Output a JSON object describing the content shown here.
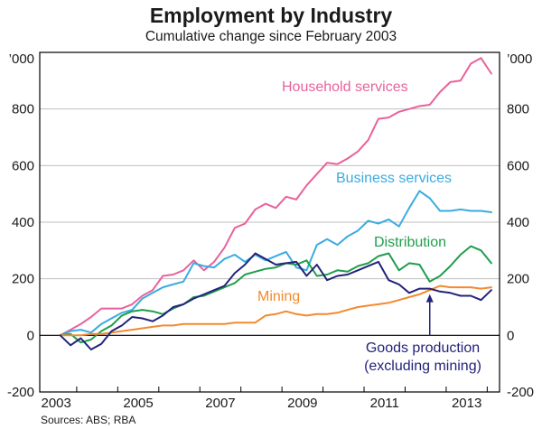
{
  "title": "Employment by Industry",
  "subtitle": "Cumulative change since February 2003",
  "source": "Sources: ABS; RBA",
  "chart_data": {
    "type": "line",
    "title": "Employment by Industry",
    "subtitle": "Cumulative change since February 2003",
    "xlabel": "",
    "ylabel": "",
    "y_unit_label": "’000",
    "x_ticks": [
      "2003",
      "2005",
      "2007",
      "2009",
      "2011",
      "2013"
    ],
    "y_ticks": [
      -200,
      0,
      200,
      400,
      600,
      800
    ],
    "xlim": [
      2002.6,
      2013.8
    ],
    "ylim": [
      -200,
      1000
    ],
    "grid": true,
    "legend": "inline labels",
    "series": [
      {
        "name": "Household services",
        "label": "Household services",
        "color": "#e8629c",
        "x": [
          2003.1,
          2003.35,
          2003.6,
          2003.85,
          2004.1,
          2004.35,
          2004.6,
          2004.85,
          2005.1,
          2005.35,
          2005.6,
          2005.85,
          2006.1,
          2006.35,
          2006.6,
          2006.85,
          2007.1,
          2007.35,
          2007.6,
          2007.85,
          2008.1,
          2008.35,
          2008.6,
          2008.85,
          2009.1,
          2009.35,
          2009.6,
          2009.85,
          2010.1,
          2010.35,
          2010.6,
          2010.85,
          2011.1,
          2011.35,
          2011.6,
          2011.85,
          2012.1,
          2012.35,
          2012.6,
          2012.85,
          2013.1,
          2013.35,
          2013.6
        ],
        "values": [
          0,
          20,
          40,
          65,
          95,
          95,
          95,
          110,
          140,
          160,
          210,
          215,
          230,
          265,
          230,
          260,
          310,
          380,
          395,
          445,
          465,
          450,
          490,
          480,
          530,
          570,
          610,
          605,
          625,
          650,
          690,
          765,
          770,
          790,
          800,
          810,
          815,
          860,
          895,
          900,
          960,
          980,
          925
        ]
      },
      {
        "name": "Business services",
        "label": "Business services",
        "color": "#3aabe0",
        "x": [
          2003.1,
          2003.35,
          2003.6,
          2003.85,
          2004.1,
          2004.35,
          2004.6,
          2004.85,
          2005.1,
          2005.35,
          2005.6,
          2005.85,
          2006.1,
          2006.35,
          2006.6,
          2006.85,
          2007.1,
          2007.35,
          2007.6,
          2007.85,
          2008.1,
          2008.35,
          2008.6,
          2008.85,
          2009.1,
          2009.35,
          2009.6,
          2009.85,
          2010.1,
          2010.35,
          2010.6,
          2010.85,
          2011.1,
          2011.35,
          2011.6,
          2011.85,
          2012.1,
          2012.35,
          2012.6,
          2012.85,
          2013.1,
          2013.35,
          2013.6
        ],
        "values": [
          0,
          15,
          20,
          10,
          40,
          60,
          80,
          90,
          130,
          150,
          170,
          180,
          190,
          255,
          245,
          240,
          270,
          285,
          260,
          285,
          265,
          280,
          295,
          240,
          230,
          320,
          340,
          320,
          350,
          370,
          405,
          395,
          410,
          385,
          450,
          510,
          485,
          440,
          440,
          445,
          440,
          440,
          435
        ]
      },
      {
        "name": "Distribution",
        "label": "Distribution",
        "color": "#1f9e4c",
        "x": [
          2003.1,
          2003.35,
          2003.6,
          2003.85,
          2004.1,
          2004.35,
          2004.6,
          2004.85,
          2005.1,
          2005.35,
          2005.6,
          2005.85,
          2006.1,
          2006.35,
          2006.6,
          2006.85,
          2007.1,
          2007.35,
          2007.6,
          2007.85,
          2008.1,
          2008.35,
          2008.6,
          2008.85,
          2009.1,
          2009.35,
          2009.6,
          2009.85,
          2010.1,
          2010.35,
          2010.6,
          2010.85,
          2011.1,
          2011.35,
          2011.6,
          2011.85,
          2012.1,
          2012.35,
          2012.6,
          2012.85,
          2013.1,
          2013.35,
          2013.6
        ],
        "values": [
          0,
          5,
          -25,
          -15,
          15,
          35,
          70,
          85,
          90,
          85,
          75,
          95,
          110,
          135,
          140,
          155,
          170,
          185,
          215,
          225,
          235,
          240,
          255,
          250,
          265,
          210,
          215,
          230,
          225,
          245,
          255,
          280,
          290,
          230,
          255,
          250,
          190,
          210,
          245,
          285,
          315,
          300,
          255
        ]
      },
      {
        "name": "Mining",
        "label": "Mining",
        "color": "#f28a30",
        "x": [
          2003.1,
          2003.35,
          2003.6,
          2003.85,
          2004.1,
          2004.35,
          2004.6,
          2004.85,
          2005.1,
          2005.35,
          2005.6,
          2005.85,
          2006.1,
          2006.35,
          2006.6,
          2006.85,
          2007.1,
          2007.35,
          2007.6,
          2007.85,
          2008.1,
          2008.35,
          2008.6,
          2008.85,
          2009.1,
          2009.35,
          2009.6,
          2009.85,
          2010.1,
          2010.35,
          2010.6,
          2010.85,
          2011.1,
          2011.35,
          2011.6,
          2011.85,
          2012.1,
          2012.35,
          2012.6,
          2012.85,
          2013.1,
          2013.35,
          2013.6
        ],
        "values": [
          0,
          0,
          0,
          5,
          5,
          10,
          15,
          20,
          25,
          30,
          35,
          35,
          40,
          40,
          40,
          40,
          40,
          45,
          45,
          45,
          70,
          75,
          85,
          75,
          70,
          75,
          75,
          80,
          90,
          100,
          105,
          110,
          115,
          125,
          135,
          145,
          160,
          175,
          170,
          170,
          170,
          165,
          170
        ]
      },
      {
        "name": "Goods production (excluding mining)",
        "label": [
          "Goods production",
          "(excluding mining)"
        ],
        "color": "#23237a",
        "x": [
          2003.1,
          2003.35,
          2003.6,
          2003.85,
          2004.1,
          2004.35,
          2004.6,
          2004.85,
          2005.1,
          2005.35,
          2005.6,
          2005.85,
          2006.1,
          2006.35,
          2006.6,
          2006.85,
          2007.1,
          2007.35,
          2007.6,
          2007.85,
          2008.1,
          2008.35,
          2008.6,
          2008.85,
          2009.1,
          2009.35,
          2009.6,
          2009.85,
          2010.1,
          2010.35,
          2010.6,
          2010.85,
          2011.1,
          2011.35,
          2011.6,
          2011.85,
          2012.1,
          2012.35,
          2012.6,
          2012.85,
          2013.1,
          2013.35,
          2013.6
        ],
        "values": [
          0,
          -35,
          -10,
          -50,
          -30,
          15,
          35,
          65,
          60,
          50,
          70,
          100,
          110,
          130,
          145,
          160,
          175,
          220,
          250,
          290,
          270,
          250,
          255,
          260,
          210,
          250,
          195,
          210,
          215,
          230,
          245,
          260,
          195,
          180,
          150,
          165,
          165,
          155,
          150,
          140,
          140,
          125,
          160
        ]
      }
    ],
    "annotations": [
      {
        "type": "arrow",
        "series": "Goods production (excluding mining)",
        "points_to_x": 2012.1,
        "points_to_y": 165
      }
    ]
  }
}
